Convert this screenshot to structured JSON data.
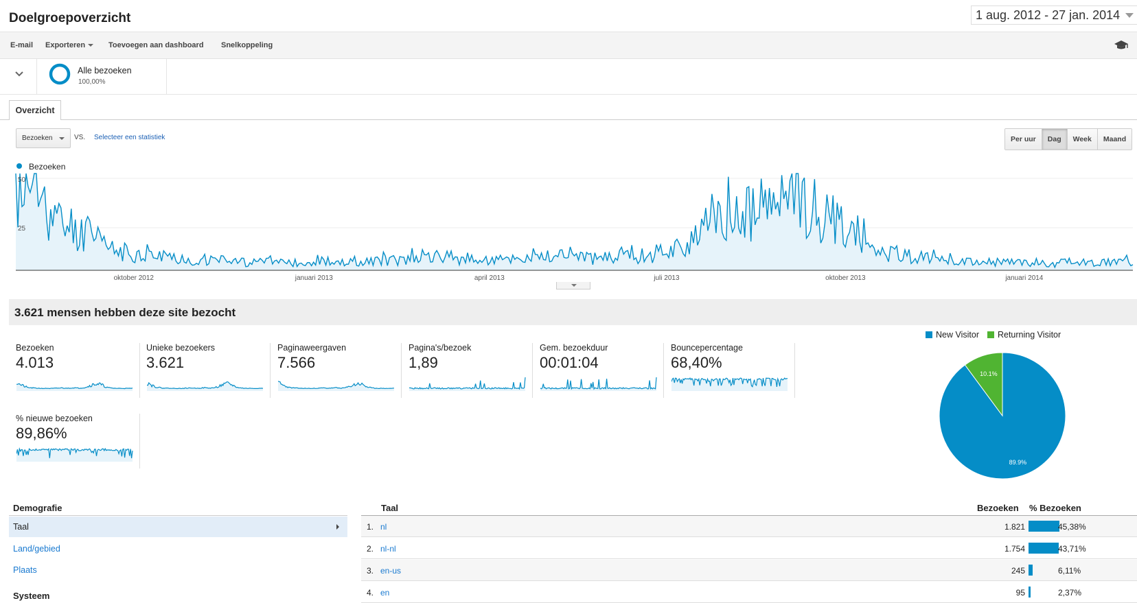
{
  "header": {
    "title": "Doelgroepoverzicht",
    "date_range": "1 aug. 2012 - 27 jan. 2014"
  },
  "toolbar": {
    "email": "E-mail",
    "export": "Exporteren",
    "add_dashboard": "Toevoegen aan dashboard",
    "shortcut": "Snelkoppeling",
    "help_icon": "graduation-cap-icon"
  },
  "segment": {
    "label": "Alle bezoeken",
    "percent": "100,00%"
  },
  "tabs": [
    {
      "label": "Overzicht"
    }
  ],
  "controls": {
    "metric": "Bezoeken",
    "vs": "VS.",
    "select_stat": "Selecteer een statistiek",
    "granularity": [
      {
        "label": "Per uur",
        "active": false
      },
      {
        "label": "Dag",
        "active": true
      },
      {
        "label": "Week",
        "active": false
      },
      {
        "label": "Maand",
        "active": false
      }
    ]
  },
  "chart_data": {
    "type": "area",
    "series": [
      {
        "name": "Bezoeken",
        "color": "#058dc7"
      }
    ],
    "x_range": [
      "2012-08-01",
      "2014-01-27"
    ],
    "ylim": [
      0,
      50
    ],
    "y_ticks": [
      "25",
      "50"
    ],
    "x_tick_labels": [
      "oktober 2012",
      "januari 2013",
      "april 2013",
      "juli 2013",
      "oktober 2013",
      "januari 2014"
    ],
    "approx_weekly_values": [
      38,
      42,
      30,
      24,
      22,
      18,
      14,
      10,
      9,
      8,
      7,
      7,
      6,
      5,
      5,
      5,
      4,
      4,
      4,
      4,
      4,
      4,
      4,
      3,
      4,
      4,
      5,
      5,
      5,
      6,
      6,
      7,
      6,
      5,
      5,
      5,
      6,
      6,
      7,
      7,
      8,
      7,
      6,
      6,
      6,
      7,
      8,
      10,
      12,
      14,
      18,
      22,
      26,
      28,
      30,
      34,
      36,
      33,
      30,
      26,
      22,
      16,
      12,
      10,
      8,
      7,
      6,
      5,
      5,
      4,
      4,
      4,
      4,
      4,
      4,
      3,
      4,
      4,
      4,
      4,
      5,
      5
    ],
    "grid": true,
    "legend": "top-left"
  },
  "summary": {
    "title": "3.621 mensen hebben deze site bezocht",
    "metrics": [
      {
        "label": "Bezoeken",
        "value": "4.013"
      },
      {
        "label": "Unieke bezoekers",
        "value": "3.621"
      },
      {
        "label": "Paginaweergaven",
        "value": "7.566"
      },
      {
        "label": "Pagina's/bezoek",
        "value": "1,89"
      },
      {
        "label": "Gem. bezoekduur",
        "value": "00:01:04"
      },
      {
        "label": "Bouncepercentage",
        "value": "68,40%"
      },
      {
        "label": "% nieuwe bezoeken",
        "value": "89,86%"
      }
    ]
  },
  "pie": {
    "legend": [
      {
        "label": "New Visitor",
        "color": "#058dc7"
      },
      {
        "label": "Returning Visitor",
        "color": "#50b432"
      }
    ],
    "values": [
      89.9,
      10.1
    ],
    "labels": [
      "89.9%",
      "10.1%"
    ]
  },
  "demographics": {
    "heading": "Demografie",
    "items": [
      {
        "label": "Taal",
        "active": true
      },
      {
        "label": "Land/gebied",
        "active": false
      },
      {
        "label": "Plaats",
        "active": false
      }
    ],
    "system_heading": "Systeem"
  },
  "language_table": {
    "col_language": "Taal",
    "col_visits": "Bezoeken",
    "col_pct": "% Bezoeken",
    "rows": [
      {
        "index": "1.",
        "name": "nl",
        "visits": "1.821",
        "pct": "45,38%",
        "fraction": 0.4538
      },
      {
        "index": "2.",
        "name": "nl-nl",
        "visits": "1.754",
        "pct": "43,71%",
        "fraction": 0.4371
      },
      {
        "index": "3.",
        "name": "en-us",
        "visits": "245",
        "pct": "6,11%",
        "fraction": 0.0611
      },
      {
        "index": "4.",
        "name": "en",
        "visits": "95",
        "pct": "2,37%",
        "fraction": 0.0237
      }
    ]
  }
}
